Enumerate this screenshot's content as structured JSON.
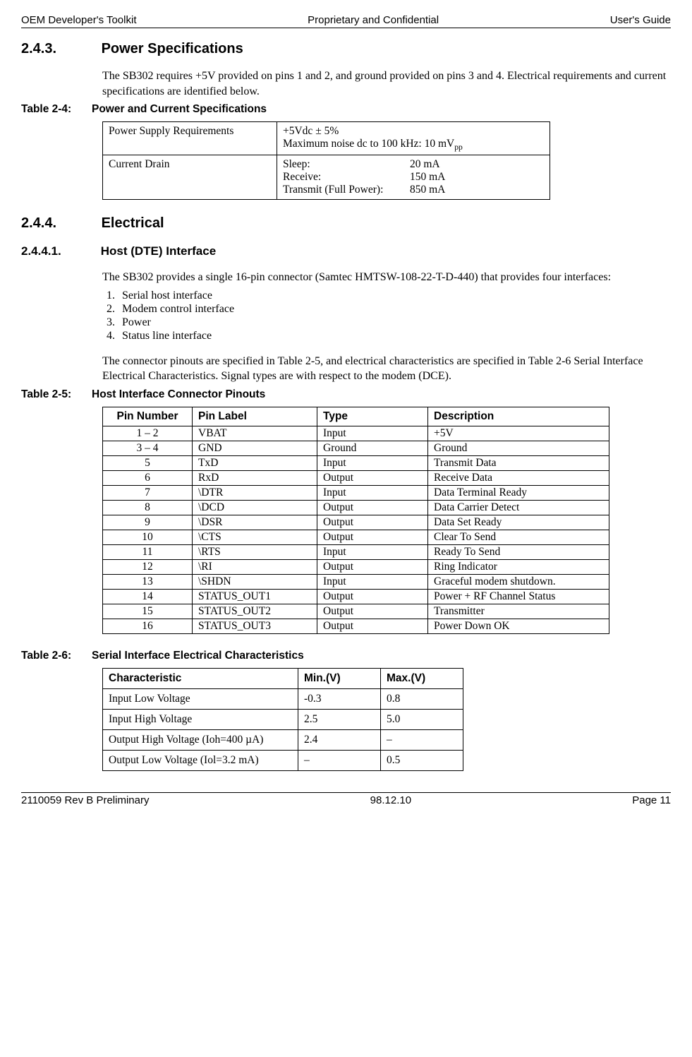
{
  "header": {
    "left": "OEM Developer's Toolkit",
    "center": "Proprietary and Confidential",
    "right": "User's Guide"
  },
  "footer": {
    "left": "2110059 Rev B Preliminary",
    "center": "98.12.10",
    "right": "Page 11"
  },
  "s243": {
    "num": "2.4.3.",
    "title": "Power Specifications",
    "para": "The SB302 requires +5V provided on pins 1 and 2, and ground provided on pins 3 and 4. Electrical requirements and current specifications are identified below."
  },
  "t24": {
    "label": "Table 2-4:",
    "title": "Power and Current Specifications",
    "row1_label": "Power Supply Requirements",
    "row1_line1": "+5Vdc ± 5%",
    "row1_line2a": "Maximum noise dc to 100 kHz: 10 mV",
    "row1_line2b": "pp",
    "row2_label": "Current Drain",
    "drain": [
      {
        "k": "Sleep:",
        "v": "20 mA"
      },
      {
        "k": "Receive:",
        "v": "150 mA"
      },
      {
        "k": "Transmit (Full Power):",
        "v": "850 mA"
      }
    ]
  },
  "s244": {
    "num": "2.4.4.",
    "title": "Electrical"
  },
  "s2441": {
    "num": "2.4.4.1.",
    "title": "Host (DTE) Interface",
    "para1": "The SB302 provides a single 16-pin connector (Samtec HMTSW-108-22-T-D-440) that provides four interfaces:",
    "list": [
      "Serial host interface",
      "Modem control interface",
      "Power",
      "Status line interface"
    ],
    "para2": "The connector pinouts are specified in Table 2-5, and electrical characteristics are specified in Table 2-6 Serial Interface Electrical Characteristics.  Signal types are with respect to the modem (DCE)."
  },
  "t25": {
    "label": "Table 2-5:",
    "title": "Host Interface Connector Pinouts",
    "columns": [
      "Pin Number",
      "Pin Label",
      "Type",
      "Description"
    ],
    "rows": [
      [
        "1 – 2",
        "VBAT",
        "Input",
        "+5V"
      ],
      [
        "3 – 4",
        "GND",
        "Ground",
        "Ground"
      ],
      [
        "5",
        "TxD",
        "Input",
        "Transmit Data"
      ],
      [
        "6",
        "RxD",
        "Output",
        "Receive Data"
      ],
      [
        "7",
        "\\DTR",
        "Input",
        "Data Terminal Ready"
      ],
      [
        "8",
        "\\DCD",
        "Output",
        "Data Carrier Detect"
      ],
      [
        "9",
        "\\DSR",
        "Output",
        "Data Set Ready"
      ],
      [
        "10",
        "\\CTS",
        "Output",
        "Clear To Send"
      ],
      [
        "11",
        "\\RTS",
        "Input",
        "Ready To Send"
      ],
      [
        "12",
        "\\RI",
        "Output",
        "Ring Indicator"
      ],
      [
        "13",
        "\\SHDN",
        "Input",
        "Graceful modem shutdown."
      ],
      [
        "14",
        "STATUS_OUT1",
        "Output",
        "Power + RF Channel Status"
      ],
      [
        "15",
        "STATUS_OUT2",
        "Output",
        "Transmitter"
      ],
      [
        "16",
        "STATUS_OUT3",
        "Output",
        "Power Down OK"
      ]
    ]
  },
  "t26": {
    "label": "Table 2-6:",
    "title": "Serial Interface Electrical Characteristics",
    "columns": [
      "Characteristic",
      "Min.(V)",
      "Max.(V)"
    ],
    "rows": [
      [
        "Input Low Voltage",
        "-0.3",
        "0.8"
      ],
      [
        "Input High Voltage",
        "2.5",
        "5.0"
      ],
      [
        "Output High Voltage (Ioh=400 µA)",
        "2.4",
        "–"
      ],
      [
        "Output Low Voltage (Iol=3.2 mA)",
        "–",
        "0.5"
      ]
    ]
  }
}
